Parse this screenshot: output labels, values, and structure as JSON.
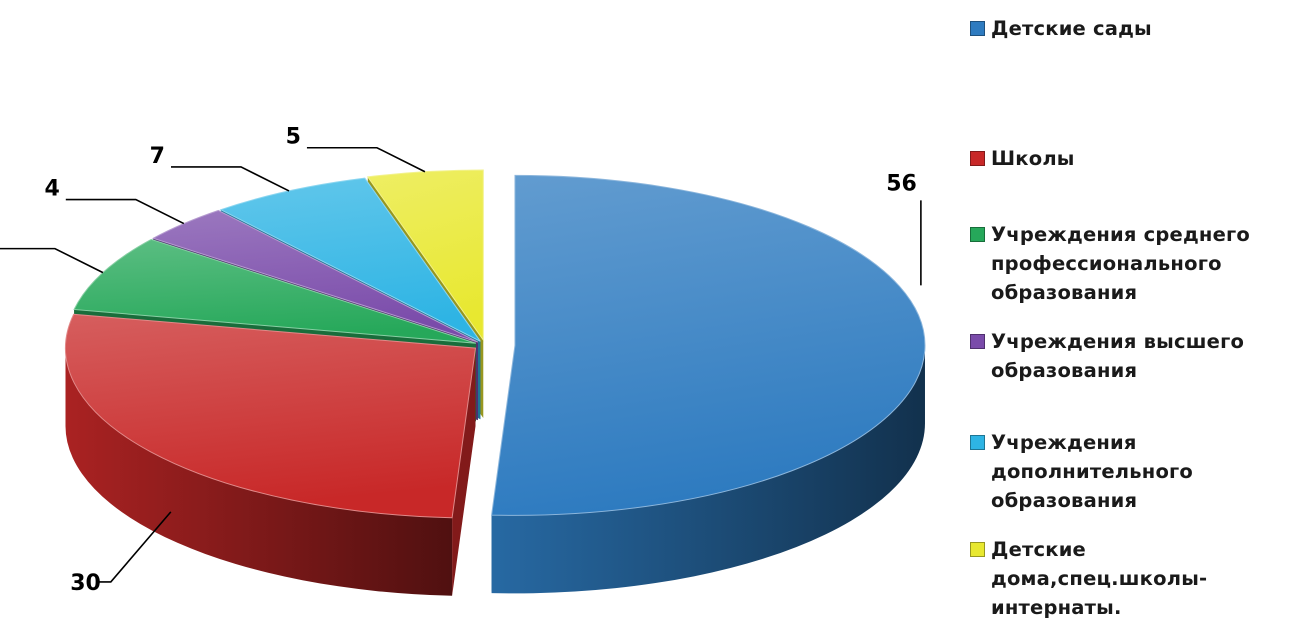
{
  "chart_data": {
    "type": "pie",
    "variant": "3d-exploded",
    "title": "",
    "legend_position": "right",
    "series": [
      {
        "name": "Детские сады",
        "value": 56,
        "color": "#2E7BC0"
      },
      {
        "name": "Школы",
        "value": 30,
        "color": "#C82828"
      },
      {
        "name": "Учреждения среднего профессионального образования",
        "value": 8,
        "color": "#26A85A"
      },
      {
        "name": "Учреждения высшего образования",
        "value": 4,
        "color": "#7A4BAA"
      },
      {
        "name": "Учреждения дополнительного образования",
        "value": 7,
        "color": "#2EB4E4"
      },
      {
        "name": "Детские дома,спец.школы-интернаты.",
        "value": 5,
        "color": "#E8E830"
      }
    ]
  },
  "legend": [
    {
      "text": "Детские сады"
    },
    {
      "text": "Школы"
    },
    {
      "text": "Учреждения среднего\nпрофессионального\nобразования"
    },
    {
      "text": "Учреждения высшего\nобразования"
    },
    {
      "text": "Учреждения\nдополнительного\nобразования"
    },
    {
      "text": "Детские\nдома,спец.школы-\nинтернаты."
    }
  ]
}
